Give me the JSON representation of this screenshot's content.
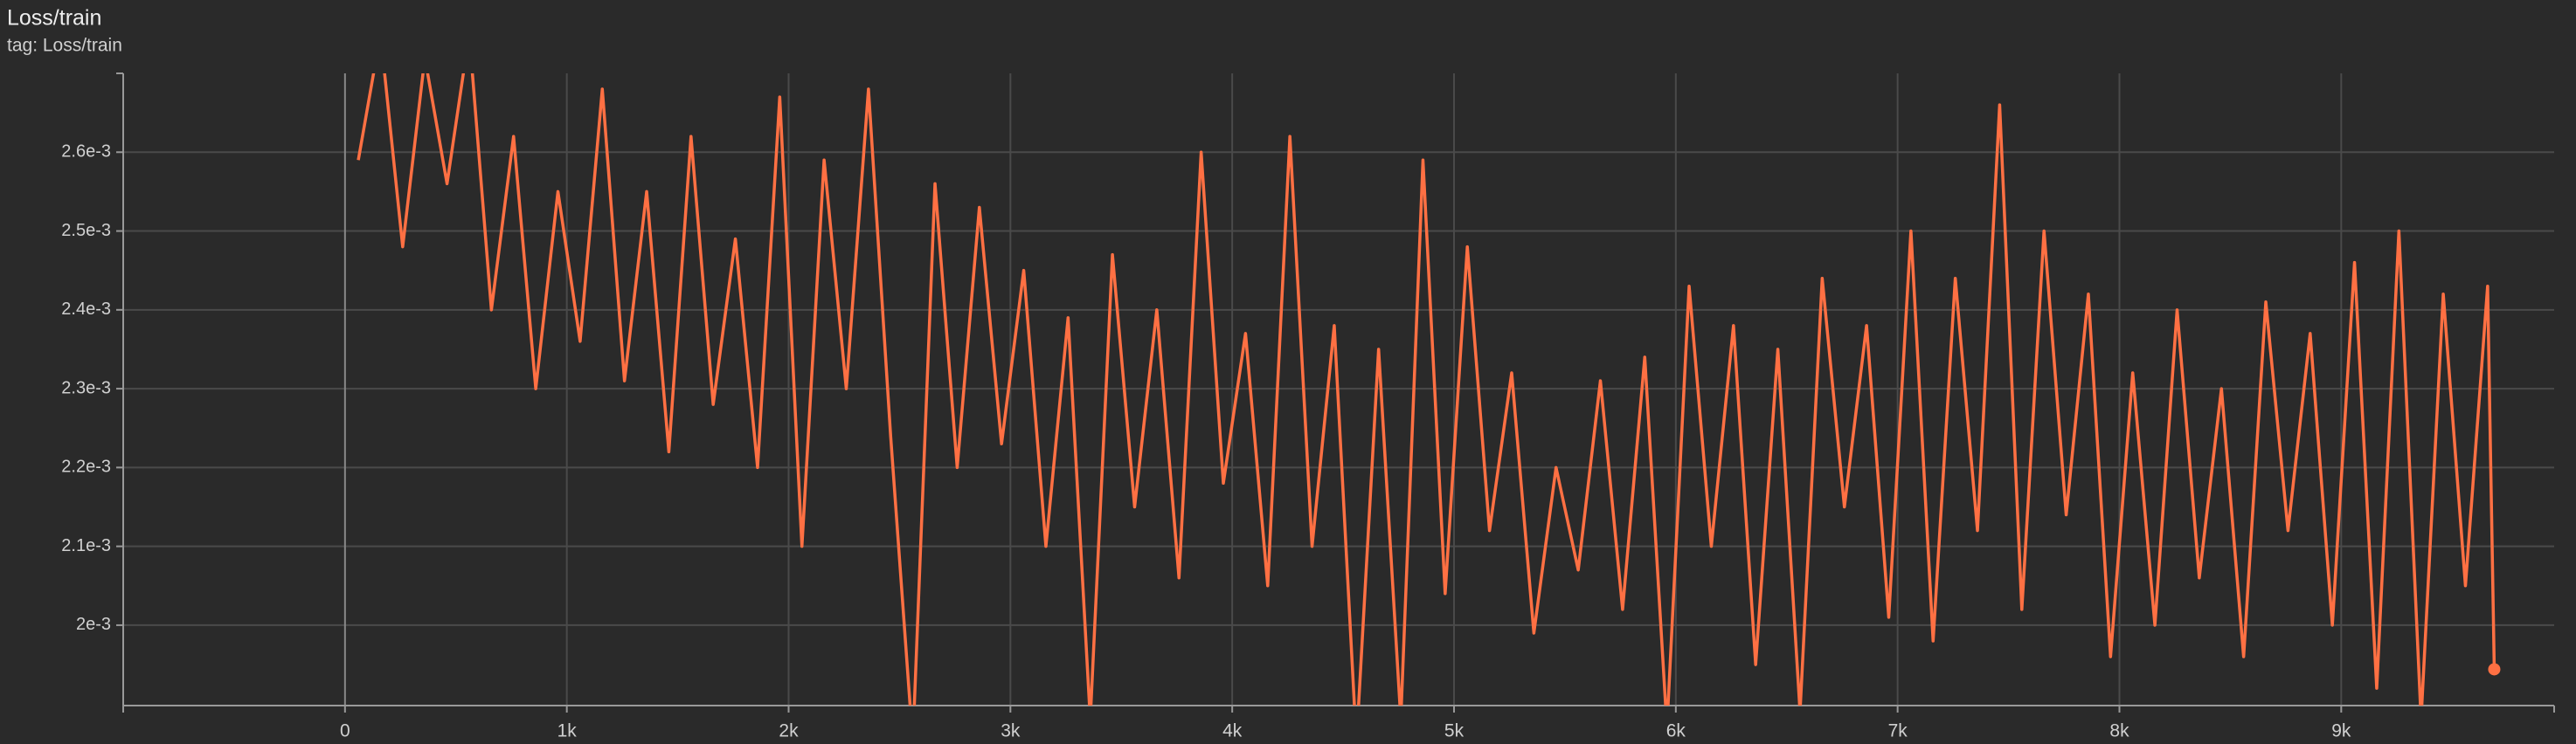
{
  "chart_data": {
    "type": "line",
    "title": "Loss/train",
    "subtitle": "tag: Loss/train",
    "x": [
      60,
      160,
      260,
      360,
      460,
      560,
      660,
      760,
      860,
      960,
      1060,
      1160,
      1260,
      1360,
      1460,
      1560,
      1660,
      1760,
      1860,
      1960,
      2060,
      2160,
      2260,
      2360,
      2460,
      2560,
      2660,
      2760,
      2860,
      2960,
      3060,
      3160,
      3260,
      3360,
      3460,
      3560,
      3660,
      3760,
      3860,
      3960,
      4060,
      4160,
      4260,
      4360,
      4460,
      4560,
      4660,
      4760,
      4860,
      4960,
      5060,
      5160,
      5260,
      5360,
      5460,
      5560,
      5660,
      5760,
      5860,
      5960,
      6060,
      6160,
      6260,
      6360,
      6460,
      6560,
      6660,
      6760,
      6860,
      6960,
      7060,
      7160,
      7260,
      7360,
      7460,
      7560,
      7660,
      7760,
      7860,
      7960,
      8060,
      8160,
      8260,
      8360,
      8460,
      8560,
      8660,
      8760,
      8860,
      8960,
      9060,
      9160,
      9260,
      9360,
      9460,
      9560,
      9660,
      9690
    ],
    "series": [
      {
        "color": "#ff7043",
        "values": [
          0.00259,
          0.00275,
          0.00248,
          0.00272,
          0.00256,
          0.00275,
          0.0024,
          0.00262,
          0.0023,
          0.00255,
          0.00236,
          0.00268,
          0.00231,
          0.00255,
          0.00222,
          0.00262,
          0.00228,
          0.00249,
          0.0022,
          0.00267,
          0.0021,
          0.00259,
          0.0023,
          0.00268,
          0.00224,
          0.00185,
          0.00256,
          0.0022,
          0.00253,
          0.00223,
          0.00245,
          0.0021,
          0.00239,
          0.00188,
          0.00247,
          0.00215,
          0.0024,
          0.00206,
          0.0026,
          0.00218,
          0.00237,
          0.00205,
          0.00262,
          0.0021,
          0.00238,
          0.00185,
          0.00235,
          0.00188,
          0.00259,
          0.00204,
          0.00248,
          0.00212,
          0.00232,
          0.00199,
          0.0022,
          0.00207,
          0.00231,
          0.00202,
          0.00234,
          0.00187,
          0.00243,
          0.0021,
          0.00238,
          0.00195,
          0.00235,
          0.00189,
          0.00244,
          0.00215,
          0.00238,
          0.00201,
          0.0025,
          0.00198,
          0.00244,
          0.00212,
          0.00266,
          0.00202,
          0.0025,
          0.00214,
          0.00242,
          0.00196,
          0.00232,
          0.002,
          0.0024,
          0.00206,
          0.0023,
          0.00196,
          0.00241,
          0.00212,
          0.00237,
          0.002,
          0.00246,
          0.00192,
          0.0025,
          0.00188,
          0.00242,
          0.00205,
          0.00243,
          0.001944
        ]
      }
    ],
    "xlim": [
      -1000,
      9960
    ],
    "ylim": [
      0.001898,
      0.0027
    ],
    "xticks": [
      0,
      {
        "value": 1000,
        "label": "1k"
      },
      {
        "value": 2000,
        "label": "2k"
      },
      {
        "value": 3000,
        "label": "3k"
      },
      {
        "value": 4000,
        "label": "4k"
      },
      {
        "value": 5000,
        "label": "5k"
      },
      {
        "value": 6000,
        "label": "6k"
      },
      {
        "value": 7000,
        "label": "7k"
      },
      {
        "value": 8000,
        "label": "8k"
      },
      {
        "value": 9000,
        "label": "9k"
      }
    ],
    "yticks": [
      {
        "value": 0.002,
        "label": "2e-3"
      },
      {
        "value": 0.0021,
        "label": "2.1e-3"
      },
      {
        "value": 0.0022,
        "label": "2.2e-3"
      },
      {
        "value": 0.0023,
        "label": "2.3e-3"
      },
      {
        "value": 0.0024,
        "label": "2.4e-3"
      },
      {
        "value": 0.0025,
        "label": "2.5e-3"
      },
      {
        "value": 0.0026,
        "label": "2.6e-3"
      }
    ],
    "grid": true
  }
}
